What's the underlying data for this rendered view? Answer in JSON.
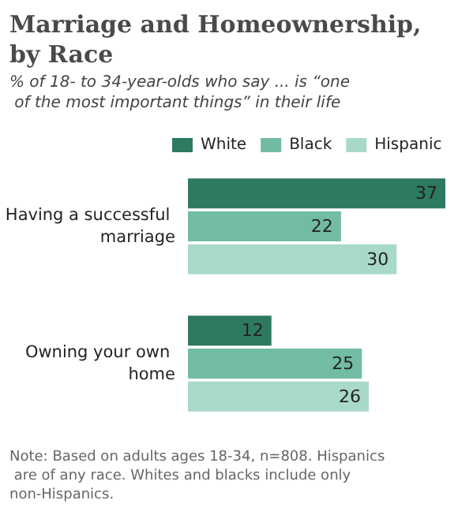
{
  "chart_data": {
    "type": "bar",
    "orientation": "horizontal",
    "title": "Marriage and Homeownership, by Race",
    "subtitle": "% of 18- to 34-year-olds who say ... is “one of the most important things” in their life",
    "categories": [
      "Having a successful marriage",
      "Owning your own home"
    ],
    "series": [
      {
        "name": "White",
        "color": "#2e7a5f",
        "values": [
          37,
          12
        ]
      },
      {
        "name": "Black",
        "color": "#72bca2",
        "values": [
          22,
          25
        ]
      },
      {
        "name": "Hispanic",
        "color": "#a9d9c9",
        "values": [
          30,
          26
        ]
      }
    ],
    "data_labels": true,
    "legend": "top",
    "annotations": [
      "Note: Based on adults ages 18-34, n=808. Hispanics are of any race. Whites and blacks include only non-Hispanics."
    ]
  }
}
